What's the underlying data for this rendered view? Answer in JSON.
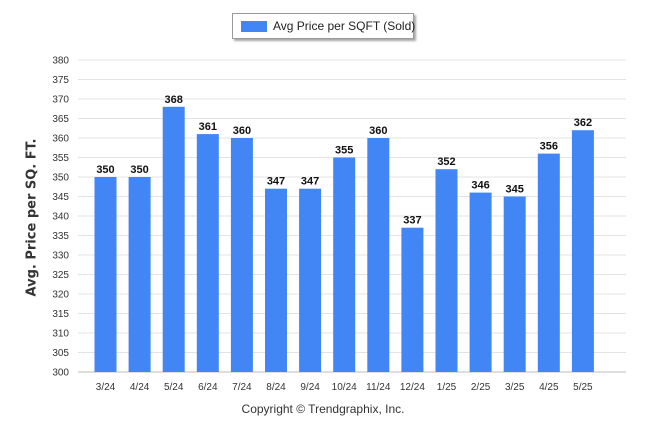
{
  "chart_data": {
    "type": "bar",
    "categories": [
      "3/24",
      "4/24",
      "5/24",
      "6/24",
      "7/24",
      "8/24",
      "9/24",
      "10/24",
      "11/24",
      "12/24",
      "1/25",
      "2/25",
      "3/25",
      "4/25",
      "5/25"
    ],
    "series": [
      {
        "name": "Avg Price per SQFT (Sold)",
        "values": [
          350,
          350,
          368,
          361,
          360,
          347,
          347,
          355,
          360,
          337,
          352,
          346,
          345,
          356,
          362
        ]
      }
    ],
    "ylabel": "Avg. Price per SQ. FT.",
    "xlabel": "",
    "ylim": [
      300,
      380
    ],
    "yticks": [
      300,
      305,
      310,
      315,
      320,
      325,
      330,
      335,
      340,
      345,
      350,
      355,
      360,
      365,
      370,
      375,
      380
    ],
    "grid": true,
    "legend_position": "top-center",
    "bar_color": "#4285f4",
    "data_labels": true
  },
  "footer": {
    "copyright": "Copyright © Trendgraphix, Inc."
  }
}
